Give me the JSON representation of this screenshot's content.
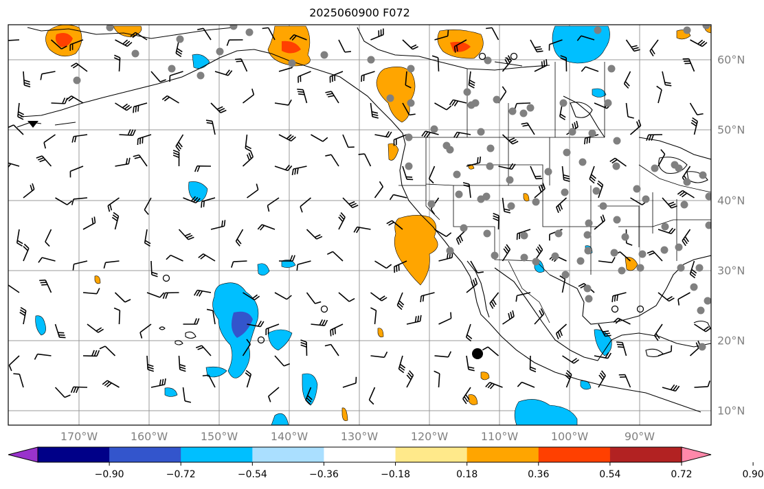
{
  "title": "2025060900 F072",
  "lon_labels": [
    "170°W",
    "160°W",
    "150°W",
    "140°W",
    "130°W",
    "120°W",
    "110°W",
    "100°W",
    "90°W"
  ],
  "lat_labels": [
    "60°N",
    "50°N",
    "40°N",
    "30°N",
    "20°N",
    "10°N"
  ],
  "colorbar": {
    "colors": [
      "#9933cc",
      "#000088",
      "#3355cc",
      "#00bfff",
      "#aadfff",
      "#ffffff",
      "#ffe98a",
      "#ffa500",
      "#ff4000",
      "#b22222",
      "#ff88aa"
    ],
    "tick_labels": [
      "−0.90",
      "−0.72",
      "−0.54",
      "−0.36",
      "−0.18",
      "0.18",
      "0.36",
      "0.54",
      "0.72",
      "0.90"
    ]
  }
}
